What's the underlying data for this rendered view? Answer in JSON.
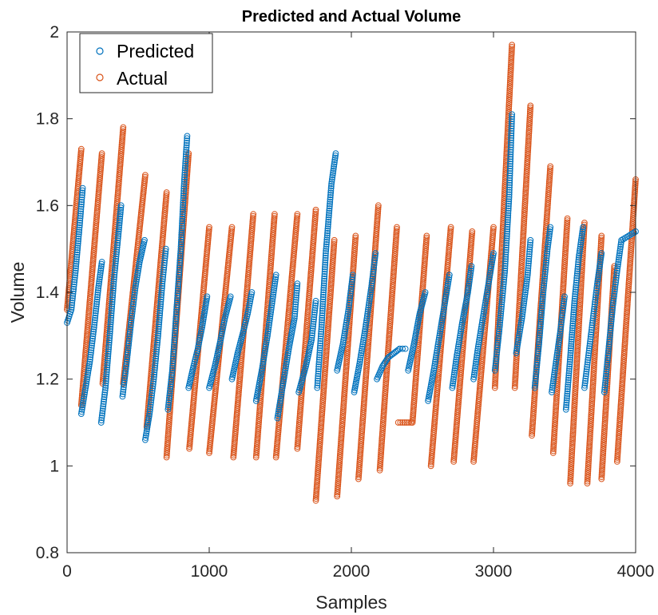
{
  "chart_data": {
    "type": "scatter",
    "title": "Predicted and Actual Volume",
    "xlabel": "Samples",
    "ylabel": "Volume",
    "xlim": [
      0,
      4000
    ],
    "ylim": [
      0.8,
      2
    ],
    "xticks": [
      0,
      1000,
      2000,
      3000,
      4000
    ],
    "yticks": [
      0.8,
      1,
      1.2,
      1.4,
      1.6,
      1.8,
      2
    ],
    "xtick_labels": [
      "0",
      "1000",
      "2000",
      "3000",
      "4000"
    ],
    "ytick_labels": [
      "0.8",
      "1",
      "1.2",
      "1.4",
      "1.6",
      "1.8",
      "2"
    ],
    "grid": false,
    "legend_position": "top-left",
    "marker": "open-circle",
    "series": [
      {
        "name": "Predicted",
        "color": "#0072BD",
        "points": [
          [
            0,
            1.33
          ],
          [
            30,
            1.36
          ],
          [
            60,
            1.45
          ],
          [
            90,
            1.56
          ],
          [
            110,
            1.64
          ],
          [
            100,
            1.12
          ],
          [
            130,
            1.18
          ],
          [
            160,
            1.24
          ],
          [
            190,
            1.32
          ],
          [
            220,
            1.41
          ],
          [
            245,
            1.47
          ],
          [
            240,
            1.1
          ],
          [
            270,
            1.18
          ],
          [
            300,
            1.3
          ],
          [
            330,
            1.43
          ],
          [
            360,
            1.53
          ],
          [
            380,
            1.6
          ],
          [
            390,
            1.16
          ],
          [
            420,
            1.24
          ],
          [
            450,
            1.33
          ],
          [
            480,
            1.41
          ],
          [
            510,
            1.47
          ],
          [
            545,
            1.52
          ],
          [
            550,
            1.06
          ],
          [
            580,
            1.12
          ],
          [
            610,
            1.2
          ],
          [
            640,
            1.3
          ],
          [
            670,
            1.42
          ],
          [
            695,
            1.5
          ],
          [
            710,
            1.13
          ],
          [
            740,
            1.22
          ],
          [
            770,
            1.36
          ],
          [
            800,
            1.5
          ],
          [
            825,
            1.66
          ],
          [
            845,
            1.76
          ],
          [
            855,
            1.18
          ],
          [
            890,
            1.23
          ],
          [
            920,
            1.27
          ],
          [
            950,
            1.32
          ],
          [
            985,
            1.39
          ],
          [
            1000,
            1.18
          ],
          [
            1040,
            1.23
          ],
          [
            1080,
            1.29
          ],
          [
            1110,
            1.34
          ],
          [
            1150,
            1.39
          ],
          [
            1160,
            1.2
          ],
          [
            1200,
            1.26
          ],
          [
            1240,
            1.31
          ],
          [
            1270,
            1.35
          ],
          [
            1300,
            1.4
          ],
          [
            1330,
            1.15
          ],
          [
            1370,
            1.22
          ],
          [
            1410,
            1.3
          ],
          [
            1440,
            1.37
          ],
          [
            1470,
            1.44
          ],
          [
            1480,
            1.11
          ],
          [
            1520,
            1.19
          ],
          [
            1560,
            1.27
          ],
          [
            1600,
            1.34
          ],
          [
            1620,
            1.42
          ],
          [
            1630,
            1.17
          ],
          [
            1680,
            1.23
          ],
          [
            1720,
            1.29
          ],
          [
            1750,
            1.38
          ],
          [
            1760,
            1.18
          ],
          [
            1790,
            1.32
          ],
          [
            1820,
            1.49
          ],
          [
            1860,
            1.65
          ],
          [
            1890,
            1.72
          ],
          [
            1900,
            1.22
          ],
          [
            1940,
            1.28
          ],
          [
            1980,
            1.36
          ],
          [
            2010,
            1.44
          ],
          [
            2020,
            1.17
          ],
          [
            2060,
            1.24
          ],
          [
            2100,
            1.32
          ],
          [
            2140,
            1.41
          ],
          [
            2170,
            1.49
          ],
          [
            2180,
            1.2
          ],
          [
            2220,
            1.23
          ],
          [
            2260,
            1.25
          ],
          [
            2300,
            1.26
          ],
          [
            2340,
            1.27
          ],
          [
            2380,
            1.27
          ],
          [
            2400,
            1.22
          ],
          [
            2440,
            1.28
          ],
          [
            2480,
            1.35
          ],
          [
            2520,
            1.4
          ],
          [
            2540,
            1.15
          ],
          [
            2580,
            1.22
          ],
          [
            2620,
            1.3
          ],
          [
            2660,
            1.38
          ],
          [
            2690,
            1.44
          ],
          [
            2710,
            1.18
          ],
          [
            2740,
            1.25
          ],
          [
            2780,
            1.33
          ],
          [
            2820,
            1.4
          ],
          [
            2845,
            1.46
          ],
          [
            2860,
            1.2
          ],
          [
            2890,
            1.27
          ],
          [
            2930,
            1.35
          ],
          [
            2970,
            1.43
          ],
          [
            3000,
            1.49
          ],
          [
            3010,
            1.22
          ],
          [
            3040,
            1.31
          ],
          [
            3080,
            1.45
          ],
          [
            3110,
            1.62
          ],
          [
            3130,
            1.81
          ],
          [
            3160,
            1.26
          ],
          [
            3200,
            1.34
          ],
          [
            3240,
            1.44
          ],
          [
            3260,
            1.52
          ],
          [
            3290,
            1.18
          ],
          [
            3320,
            1.28
          ],
          [
            3350,
            1.4
          ],
          [
            3380,
            1.5
          ],
          [
            3400,
            1.55
          ],
          [
            3410,
            1.17
          ],
          [
            3440,
            1.24
          ],
          [
            3470,
            1.31
          ],
          [
            3500,
            1.39
          ],
          [
            3510,
            1.13
          ],
          [
            3540,
            1.25
          ],
          [
            3570,
            1.38
          ],
          [
            3600,
            1.48
          ],
          [
            3630,
            1.55
          ],
          [
            3640,
            1.18
          ],
          [
            3670,
            1.26
          ],
          [
            3700,
            1.34
          ],
          [
            3730,
            1.42
          ],
          [
            3760,
            1.49
          ],
          [
            3780,
            1.17
          ],
          [
            3810,
            1.27
          ],
          [
            3840,
            1.37
          ],
          [
            3870,
            1.45
          ],
          [
            3900,
            1.52
          ],
          [
            4000,
            1.54
          ]
        ]
      },
      {
        "name": "Actual",
        "color": "#D95319",
        "segments": [
          [
            [
              0,
              1.36
            ],
            [
              100,
              1.73
            ]
          ],
          [
            [
              100,
              1.14
            ],
            [
              245,
              1.72
            ]
          ],
          [
            [
              250,
              1.19
            ],
            [
              395,
              1.78
            ]
          ],
          [
            [
              395,
              1.19
            ],
            [
              550,
              1.67
            ]
          ],
          [
            [
              560,
              1.09
            ],
            [
              700,
              1.63
            ]
          ],
          [
            [
              700,
              1.02
            ],
            [
              855,
              1.72
            ]
          ],
          [
            [
              860,
              1.04
            ],
            [
              1000,
              1.55
            ]
          ],
          [
            [
              1000,
              1.03
            ],
            [
              1160,
              1.55
            ]
          ],
          [
            [
              1170,
              1.02
            ],
            [
              1310,
              1.58
            ]
          ],
          [
            [
              1330,
              1.02
            ],
            [
              1460,
              1.58
            ]
          ],
          [
            [
              1470,
              1.02
            ],
            [
              1620,
              1.58
            ]
          ],
          [
            [
              1620,
              1.04
            ],
            [
              1750,
              1.59
            ]
          ],
          [
            [
              1750,
              0.92
            ],
            [
              1880,
              1.52
            ]
          ],
          [
            [
              1900,
              0.93
            ],
            [
              2030,
              1.53
            ]
          ],
          [
            [
              2050,
              0.97
            ],
            [
              2190,
              1.6
            ]
          ],
          [
            [
              2200,
              0.99
            ],
            [
              2320,
              1.55
            ]
          ],
          [
            [
              2330,
              1.1
            ],
            [
              2420,
              1.1
            ]
          ],
          [
            [
              2430,
              1.1
            ],
            [
              2530,
              1.53
            ]
          ],
          [
            [
              2560,
              1.0
            ],
            [
              2700,
              1.55
            ]
          ],
          [
            [
              2720,
              1.01
            ],
            [
              2850,
              1.54
            ]
          ],
          [
            [
              2860,
              1.01
            ],
            [
              3000,
              1.55
            ]
          ],
          [
            [
              3010,
              1.18
            ],
            [
              3130,
              1.97
            ]
          ],
          [
            [
              3150,
              1.18
            ],
            [
              3260,
              1.83
            ]
          ],
          [
            [
              3270,
              1.07
            ],
            [
              3400,
              1.69
            ]
          ],
          [
            [
              3420,
              1.03
            ],
            [
              3520,
              1.57
            ]
          ],
          [
            [
              3540,
              0.96
            ],
            [
              3640,
              1.56
            ]
          ],
          [
            [
              3660,
              0.96
            ],
            [
              3760,
              1.53
            ]
          ],
          [
            [
              3760,
              0.97
            ],
            [
              3850,
              1.46
            ]
          ],
          [
            [
              3870,
              1.01
            ],
            [
              4000,
              1.66
            ]
          ]
        ]
      }
    ]
  }
}
